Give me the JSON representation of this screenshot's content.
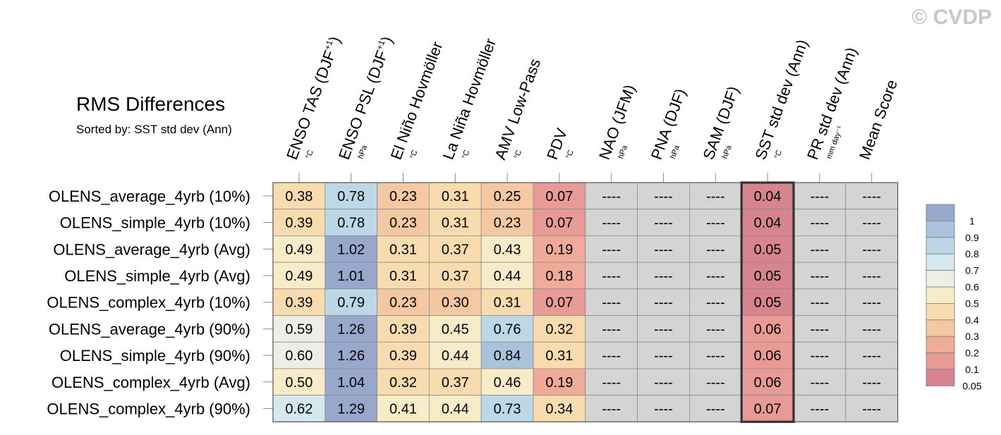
{
  "watermark": "© CVDP",
  "chart_data": {
    "type": "heatmap",
    "title": "RMS Differences",
    "subtitle": "Sorted by: SST std dev (Ann)",
    "columns": [
      {
        "label": "ENSO TAS (DJF",
        "sup": "+1",
        "suffix": ")",
        "unit": "°C"
      },
      {
        "label": "ENSO PSL (DJF",
        "sup": "+1",
        "suffix": ")",
        "unit": "hPa"
      },
      {
        "label": "El Niño Hovmöller",
        "sup": "",
        "suffix": "",
        "unit": "°C"
      },
      {
        "label": "La Niña Hovmöller",
        "sup": "",
        "suffix": "",
        "unit": "°C"
      },
      {
        "label": "AMV Low-Pass",
        "sup": "",
        "suffix": "",
        "unit": "°C"
      },
      {
        "label": "PDV",
        "sup": "",
        "suffix": "",
        "unit": "°C"
      },
      {
        "label": "NAO (JFM)",
        "sup": "",
        "suffix": "",
        "unit": "hPa"
      },
      {
        "label": "PNA (DJF)",
        "sup": "",
        "suffix": "",
        "unit": "hPa"
      },
      {
        "label": "SAM (DJF)",
        "sup": "",
        "suffix": "",
        "unit": "hPa"
      },
      {
        "label": "SST std dev (Ann)",
        "sup": "",
        "suffix": "",
        "unit": "°C"
      },
      {
        "label": "PR std dev (Ann)",
        "sup": "",
        "suffix": "",
        "unit": "mm day⁻¹"
      },
      {
        "label": "Mean Score",
        "sup": "",
        "suffix": "",
        "unit": ""
      }
    ],
    "rows": [
      "OLENS_average_4yrb (10%)",
      "OLENS_simple_4yrb (10%)",
      "OLENS_average_4yrb (Avg)",
      "OLENS_simple_4yrb (Avg)",
      "OLENS_complex_4yrb (10%)",
      "OLENS_average_4yrb (90%)",
      "OLENS_simple_4yrb (90%)",
      "OLENS_complex_4yrb (Avg)",
      "OLENS_complex_4yrb (90%)"
    ],
    "values": [
      [
        "0.38",
        "0.78",
        "0.23",
        "0.31",
        "0.25",
        "0.07",
        "----",
        "----",
        "----",
        "0.04",
        "----",
        "----"
      ],
      [
        "0.39",
        "0.78",
        "0.23",
        "0.31",
        "0.23",
        "0.07",
        "----",
        "----",
        "----",
        "0.04",
        "----",
        "----"
      ],
      [
        "0.49",
        "1.02",
        "0.31",
        "0.37",
        "0.43",
        "0.19",
        "----",
        "----",
        "----",
        "0.05",
        "----",
        "----"
      ],
      [
        "0.49",
        "1.01",
        "0.31",
        "0.37",
        "0.44",
        "0.18",
        "----",
        "----",
        "----",
        "0.05",
        "----",
        "----"
      ],
      [
        "0.39",
        "0.79",
        "0.23",
        "0.30",
        "0.31",
        "0.07",
        "----",
        "----",
        "----",
        "0.05",
        "----",
        "----"
      ],
      [
        "0.59",
        "1.26",
        "0.39",
        "0.45",
        "0.76",
        "0.32",
        "----",
        "----",
        "----",
        "0.06",
        "----",
        "----"
      ],
      [
        "0.60",
        "1.26",
        "0.39",
        "0.44",
        "0.84",
        "0.31",
        "----",
        "----",
        "----",
        "0.06",
        "----",
        "----"
      ],
      [
        "0.50",
        "1.04",
        "0.32",
        "0.37",
        "0.46",
        "0.19",
        "----",
        "----",
        "----",
        "0.06",
        "----",
        "----"
      ],
      [
        "0.62",
        "1.29",
        "0.41",
        "0.44",
        "0.73",
        "0.34",
        "----",
        "----",
        "----",
        "0.07",
        "----",
        "----"
      ]
    ],
    "sorted_column": "SST std dev (Ann)",
    "missing_color": "#d4d4d4",
    "legend": {
      "placement": "right",
      "labels": [
        "1",
        "0.9",
        "0.8",
        "0.7",
        "0.6",
        "0.5",
        "0.4",
        "0.3",
        "0.2",
        "0.1",
        "0.05"
      ],
      "colors": [
        "#98a8cc",
        "#a9c3dc",
        "#bcd8e6",
        "#d4e8ef",
        "#eeeee6",
        "#f8ecc8",
        "#f8dcb0",
        "#f5c8a4",
        "#f0aa98",
        "#e89a94",
        "#d8848e"
      ]
    }
  }
}
